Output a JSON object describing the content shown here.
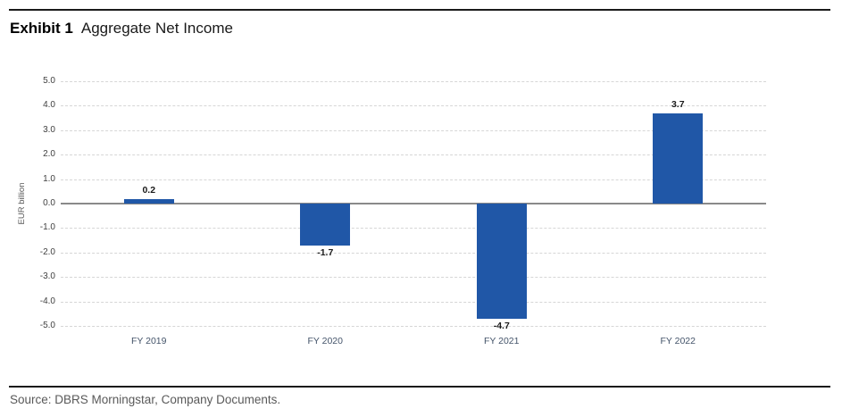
{
  "title": {
    "exhibit": "Exhibit 1",
    "text": "Aggregate Net Income"
  },
  "source": "Source: DBRS Morningstar, Company Documents.",
  "colors": {
    "bar": "#2057A7",
    "gridline": "#d6d6d6",
    "zero_line": "#8a8a8a",
    "rule": "#1a1a1a",
    "axis_text": "#3f3f3f",
    "category_text": "#44546a",
    "source_text": "#595959"
  },
  "chart_data": {
    "type": "bar",
    "title": "Aggregate Net Income",
    "categories": [
      "FY 2019",
      "FY 2020",
      "FY 2021",
      "FY 2022"
    ],
    "values": [
      0.2,
      -1.7,
      -4.7,
      3.7
    ],
    "data_labels": [
      "0.2",
      "-1.7",
      "-4.7",
      "3.7"
    ],
    "xlabel": "",
    "ylabel": "EUR billion",
    "ylim": [
      -5.0,
      5.0
    ],
    "ytick_step": 1.0,
    "ytick_labels": [
      "5.0",
      "4.0",
      "3.0",
      "2.0",
      "1.0",
      "0.0",
      "-1.0",
      "-2.0",
      "-3.0",
      "-4.0",
      "-5.0"
    ],
    "grid": true,
    "gridline_style": "dashed",
    "legend": "none"
  }
}
